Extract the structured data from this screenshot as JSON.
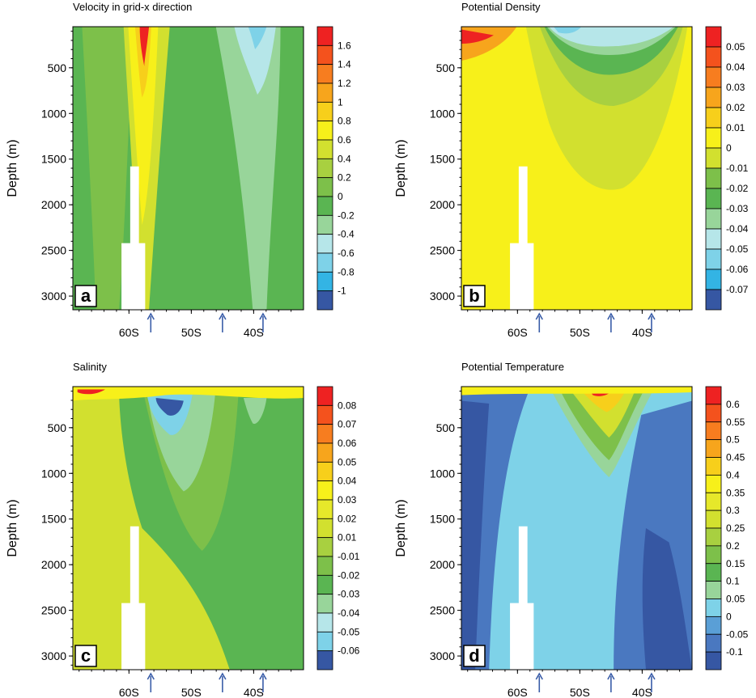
{
  "figure": {
    "y_axis_label": "Depth (m)",
    "y_ticks": [
      500,
      1000,
      1500,
      2000,
      2500,
      3000
    ],
    "x_ticks": [
      "60S",
      "50S",
      "40S"
    ],
    "arrow_color": "#3a5da8",
    "mask_color": "#ffffff"
  },
  "chart_data": [
    {
      "panel": "a",
      "type": "heatmap",
      "title": "Velocity in grid-x direction",
      "ylabel": "Depth (m)",
      "xlabel": "",
      "ylim": [
        3150,
        50
      ],
      "xlim": [
        -69,
        -32
      ],
      "x_tick_values": [
        -60,
        -50,
        -40
      ],
      "x_tick_labels": [
        "60S",
        "50S",
        "40S"
      ],
      "arrow_x": [
        -56.5,
        -45,
        -38.5
      ],
      "colorbar_levels": [
        "1.6",
        "1.4",
        "1.2",
        "1",
        "0.8",
        "0.6",
        "0.4",
        "0.2",
        "0",
        "-0.2",
        "-0.4",
        "-0.6",
        "-0.8",
        "-1"
      ],
      "colorbar_colors": [
        "#ee2222",
        "#f4521d",
        "#f77d1f",
        "#f7a51c",
        "#f7cf1b",
        "#f7f01a",
        "#d2e02f",
        "#a8d040",
        "#7dc04a",
        "#5ab552",
        "#98d59a",
        "#b6e6e9",
        "#7ed2e8",
        "#33b4e4",
        "#3657a3"
      ],
      "background_color": "#5ab552"
    },
    {
      "panel": "b",
      "type": "heatmap",
      "title": "Potential Density",
      "ylabel": "Depth (m)",
      "xlabel": "",
      "ylim": [
        3150,
        50
      ],
      "xlim": [
        -69,
        -32
      ],
      "x_tick_values": [
        -60,
        -50,
        -40
      ],
      "x_tick_labels": [
        "60S",
        "50S",
        "40S"
      ],
      "arrow_x": [
        -56.5,
        -45,
        -38.5
      ],
      "colorbar_levels": [
        "0.05",
        "0.04",
        "0.03",
        "0.02",
        "0.01",
        "0",
        "-0.01",
        "-0.02",
        "-0.03",
        "-0.04",
        "-0.05",
        "-0.06",
        "-0.07"
      ],
      "colorbar_colors": [
        "#ee2222",
        "#f4521d",
        "#f77d1f",
        "#f7a51c",
        "#f7cf1b",
        "#f7f01a",
        "#d2e02f",
        "#7dc04a",
        "#5ab552",
        "#98d59a",
        "#b6e6e9",
        "#7ed2e8",
        "#33b4e4",
        "#3657a3"
      ],
      "background_color": "#f7f01a"
    },
    {
      "panel": "c",
      "type": "heatmap",
      "title": "Salinity",
      "ylabel": "Depth (m)",
      "xlabel": "",
      "ylim": [
        3150,
        50
      ],
      "xlim": [
        -69,
        -32
      ],
      "x_tick_values": [
        -60,
        -50,
        -40
      ],
      "x_tick_labels": [
        "60S",
        "50S",
        "40S"
      ],
      "arrow_x": [
        -56.5,
        -45,
        -38.5
      ],
      "colorbar_levels": [
        "0.08",
        "0.07",
        "0.06",
        "0.05",
        "0.04",
        "0.03",
        "0.02",
        "0.01",
        "-0.01",
        "-0.02",
        "-0.03",
        "-0.04",
        "-0.05",
        "-0.06"
      ],
      "colorbar_colors": [
        "#ee2222",
        "#f4521d",
        "#f77d1f",
        "#f7a51c",
        "#f7cf1b",
        "#f7f01a",
        "#e6e82a",
        "#d2e02f",
        "#a8d040",
        "#7dc04a",
        "#5ab552",
        "#98d59a",
        "#b6e6e9",
        "#7ed2e8",
        "#3657a3"
      ],
      "background_color": "#d2e02f"
    },
    {
      "panel": "d",
      "type": "heatmap",
      "title": "Potential Temperature",
      "ylabel": "Depth (m)",
      "xlabel": "",
      "ylim": [
        3150,
        50
      ],
      "xlim": [
        -69,
        -32
      ],
      "x_tick_values": [
        -60,
        -50,
        -40
      ],
      "x_tick_labels": [
        "60S",
        "50S",
        "40S"
      ],
      "arrow_x": [
        -56.5,
        -45,
        -38.5
      ],
      "colorbar_levels": [
        "0.6",
        "0.55",
        "0.5",
        "0.45",
        "0.4",
        "0.35",
        "0.3",
        "0.25",
        "0.2",
        "0.15",
        "0.1",
        "0.05",
        "0",
        "-0.05",
        "-0.1"
      ],
      "colorbar_colors": [
        "#ee2222",
        "#f4521d",
        "#f77d1f",
        "#f7a51c",
        "#f7cf1b",
        "#f7f01a",
        "#e6e82a",
        "#d2e02f",
        "#a8d040",
        "#7dc04a",
        "#5ab552",
        "#98d59a",
        "#7ed2e8",
        "#5a9fd6",
        "#4a78c0",
        "#3657a3"
      ],
      "background_color": "#7ed2e8"
    }
  ]
}
